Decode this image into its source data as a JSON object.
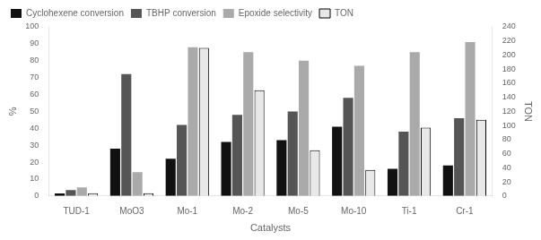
{
  "chart_data": {
    "type": "bar",
    "categories": [
      "TUD-1",
      "MoO3",
      "Mo-1",
      "Mo-2",
      "Mo-5",
      "Mo-10",
      "Ti-1",
      "Cr-1"
    ],
    "series": [
      {
        "name": "Cyclohexene conversion",
        "color": "#111111",
        "values": [
          1.5,
          28,
          22,
          32,
          33,
          41,
          16,
          18
        ]
      },
      {
        "name": "TBHP conversion",
        "color": "#555555",
        "values": [
          3.5,
          72,
          42,
          48,
          50,
          58,
          38,
          46
        ]
      },
      {
        "name": "Epoxide selectivity",
        "color": "#aaaaaa",
        "values": [
          5,
          14,
          88,
          85,
          80,
          77,
          85,
          91
        ]
      },
      {
        "name": "TON",
        "color": "#e8e8e8",
        "values": [
          4,
          4,
          210,
          150,
          65,
          37,
          97,
          108
        ],
        "axis": "y2"
      }
    ],
    "xlabel": "Catalysts",
    "ylabel": "%",
    "y2label": "TON",
    "ylim": [
      0,
      100
    ],
    "yticks": [
      0,
      10,
      20,
      30,
      40,
      50,
      60,
      70,
      80,
      90,
      100
    ],
    "y2lim": [
      0,
      240
    ],
    "y2ticks": [
      0,
      20,
      40,
      60,
      80,
      100,
      120,
      140,
      160,
      180,
      200,
      220,
      240
    ],
    "grid": false,
    "legend": "upper left"
  }
}
